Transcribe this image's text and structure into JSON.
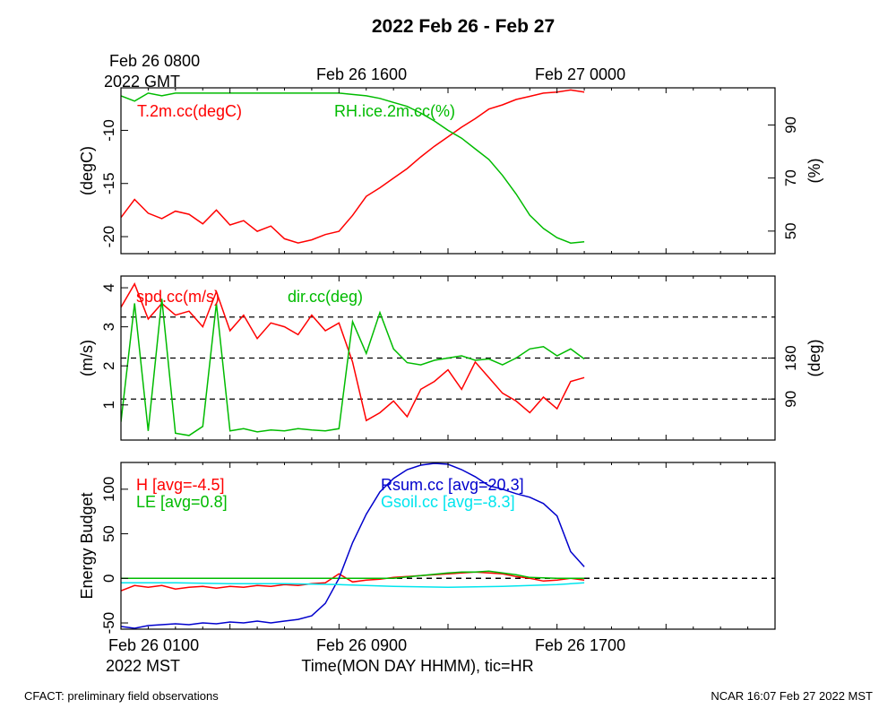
{
  "title": "2022 Feb 26 - Feb 27",
  "top_time_labels": {
    "t0_line1": "Feb 26 0800",
    "t0_line2": "2022 GMT",
    "t1": "Feb 26 1600",
    "t2": "Feb 27 0000"
  },
  "bottom_time_labels": {
    "t0_line1": "Feb 26 0100",
    "t0_line2": "2022 MST",
    "t1": "Feb 26 0900",
    "t2": "Feb 26 1700"
  },
  "xlabel": "Time(MON DAY HHMM), tic=HR",
  "footer_left": "CFACT: preliminary field observations",
  "footer_right": "NCAR 16:07 Feb 27 2022 MST",
  "chart_data": [
    {
      "type": "line",
      "panel": "temperature-humidity",
      "x_unit": "hours since Feb 26 0100 MST",
      "xlim": [
        0,
        24
      ],
      "left_axis": {
        "label": "(degC)",
        "ylim": [
          -21.6,
          -6.0
        ],
        "ticks": [
          -20,
          -15,
          -10
        ]
      },
      "right_axis": {
        "label": "(%)",
        "ylim": [
          41.5,
          104
        ],
        "ticks": [
          50,
          70,
          90
        ]
      },
      "series": [
        {
          "name": "T.2m.cc(degC)",
          "axis": "left",
          "color": "#ff0000",
          "x": [
            0,
            0.5,
            1,
            1.5,
            2,
            2.5,
            3,
            3.5,
            4,
            4.5,
            5,
            5.5,
            6,
            6.5,
            7,
            7.5,
            8,
            8.5,
            9,
            9.5,
            10,
            10.5,
            11,
            11.5,
            12,
            12.5,
            13,
            13.5,
            14,
            14.5,
            15,
            15.5,
            16,
            16.5,
            17
          ],
          "values": [
            -18.2,
            -16.5,
            -17.8,
            -18.3,
            -17.6,
            -17.9,
            -18.8,
            -17.5,
            -18.9,
            -18.5,
            -19.5,
            -19.0,
            -20.2,
            -20.6,
            -20.3,
            -19.8,
            -19.5,
            -18.0,
            -16.2,
            -15.4,
            -14.5,
            -13.6,
            -12.5,
            -11.5,
            -10.6,
            -9.7,
            -8.9,
            -8.0,
            -7.6,
            -7.1,
            -6.8,
            -6.5,
            -6.4,
            -6.2,
            -6.4
          ]
        },
        {
          "name": "RH.ice.2m.cc(%)",
          "axis": "right",
          "color": "#00bb00",
          "x": [
            0,
            0.5,
            1,
            1.5,
            2,
            2.5,
            3,
            3.5,
            4,
            4.5,
            5,
            5.5,
            6,
            6.5,
            7,
            7.5,
            8,
            8.5,
            9,
            9.5,
            10,
            10.5,
            11,
            11.5,
            12,
            12.5,
            13,
            13.5,
            14,
            14.5,
            15,
            15.5,
            16,
            16.5,
            17
          ],
          "values": [
            101,
            99,
            102,
            101,
            102,
            102,
            102,
            102,
            102,
            102,
            102,
            102,
            102,
            102,
            102,
            102,
            102,
            101.5,
            101,
            100,
            98.5,
            97,
            94.5,
            91.5,
            88,
            85,
            81,
            77,
            71,
            64,
            56,
            51,
            47.5,
            45.5,
            46
          ]
        }
      ]
    },
    {
      "type": "line",
      "panel": "wind",
      "x_unit": "hours since Feb 26 0100 MST",
      "xlim": [
        0,
        24
      ],
      "left_axis": {
        "label": "(m/s)",
        "ylim": [
          0.1,
          4.3
        ],
        "ticks": [
          1,
          2,
          3,
          4
        ]
      },
      "right_axis": {
        "label": "(deg)",
        "ylim": [
          0,
          360
        ],
        "ticks": [
          90,
          180
        ]
      },
      "reference_lines_right": [
        90,
        180,
        270
      ],
      "series": [
        {
          "name": "spd.cc(m/s)",
          "axis": "left",
          "color": "#ff0000",
          "x": [
            0,
            0.5,
            1,
            1.5,
            2,
            2.5,
            3,
            3.5,
            4,
            4.5,
            5,
            5.5,
            6,
            6.5,
            7,
            7.5,
            8,
            8.5,
            9,
            9.5,
            10,
            10.5,
            11,
            11.5,
            12,
            12.5,
            13,
            13.5,
            14,
            14.5,
            15,
            15.5,
            16,
            16.5,
            17
          ],
          "values": [
            3.5,
            4.1,
            3.2,
            3.6,
            3.3,
            3.4,
            3.0,
            3.9,
            2.9,
            3.3,
            2.7,
            3.1,
            3.0,
            2.8,
            3.3,
            2.9,
            3.1,
            2.1,
            0.6,
            0.8,
            1.1,
            0.7,
            1.4,
            1.6,
            1.9,
            1.4,
            2.1,
            1.7,
            1.3,
            1.1,
            0.8,
            1.2,
            0.9,
            1.6,
            1.7
          ]
        },
        {
          "name": "dir.cc(deg)",
          "axis": "right",
          "color": "#00bb00",
          "x": [
            0,
            0.5,
            1,
            1.5,
            2,
            2.5,
            3,
            3.5,
            4,
            4.5,
            5,
            5.5,
            6,
            6.5,
            7,
            7.5,
            8,
            8.5,
            9,
            9.5,
            10,
            10.5,
            11,
            11.5,
            12,
            12.5,
            13,
            13.5,
            14,
            14.5,
            15,
            15.5,
            16,
            16.5,
            17
          ],
          "values": [
            40,
            300,
            20,
            310,
            15,
            10,
            30,
            300,
            20,
            25,
            18,
            22,
            20,
            25,
            22,
            20,
            25,
            260,
            190,
            280,
            200,
            170,
            165,
            175,
            180,
            185,
            175,
            178,
            165,
            180,
            200,
            205,
            185,
            200,
            178
          ]
        }
      ]
    },
    {
      "type": "line",
      "panel": "energy-budget",
      "x_unit": "hours since Feb 26 0100 MST",
      "xlim": [
        0,
        24
      ],
      "left_axis": {
        "label": "Energy Budget",
        "ylim": [
          -57,
          130
        ],
        "ticks": [
          -50,
          0,
          50,
          100
        ]
      },
      "reference_lines_left": [
        0
      ],
      "series": [
        {
          "name": "H [avg=-4.5]",
          "color": "#ff0000",
          "x": [
            0,
            0.5,
            1,
            1.5,
            2,
            2.5,
            3,
            3.5,
            4,
            4.5,
            5,
            5.5,
            6,
            6.5,
            7,
            7.5,
            8,
            8.5,
            9,
            9.5,
            10,
            10.5,
            11,
            11.5,
            12,
            12.5,
            13,
            13.5,
            14,
            14.5,
            15,
            15.5,
            16,
            16.5,
            17
          ],
          "values": [
            -14,
            -8,
            -10,
            -8,
            -12,
            -10,
            -9,
            -11,
            -9,
            -10,
            -8,
            -9,
            -7,
            -8,
            -6,
            -5,
            5,
            -4,
            -2,
            -1,
            1,
            2,
            3,
            4,
            5,
            6,
            7,
            6,
            5,
            2,
            0,
            -3,
            -2,
            0,
            -2
          ]
        },
        {
          "name": "LE [avg=0.8]",
          "color": "#00bb00",
          "x": [
            0,
            1,
            2,
            3,
            4,
            5,
            6,
            7,
            8,
            9,
            10,
            11,
            12,
            12.5,
            13,
            13.5,
            14,
            14.5,
            15,
            16,
            17
          ],
          "values": [
            0,
            0,
            0,
            0,
            0,
            0,
            0,
            0,
            0,
            0,
            0,
            3,
            6,
            7,
            7,
            8,
            6,
            4,
            1,
            0,
            0
          ]
        },
        {
          "name": "Rsum.cc [avg=20.3]",
          "color": "#0000cc",
          "x": [
            0,
            0.5,
            1,
            1.5,
            2,
            2.5,
            3,
            3.5,
            4,
            4.5,
            5,
            5.5,
            6,
            6.5,
            7,
            7.5,
            8,
            8.5,
            9,
            9.5,
            10,
            10.5,
            11,
            11.5,
            12,
            12.5,
            13,
            13.5,
            14,
            14.5,
            15,
            15.5,
            16,
            16.5,
            17
          ],
          "values": [
            -54,
            -56,
            -53,
            -52,
            -51,
            -52,
            -50,
            -51,
            -49,
            -50,
            -48,
            -50,
            -48,
            -46,
            -42,
            -28,
            0,
            40,
            72,
            97,
            112,
            122,
            127,
            129,
            128,
            122,
            114,
            104,
            100,
            95,
            91,
            84,
            70,
            30,
            13
          ]
        },
        {
          "name": "Gsoil.cc [avg=-8.3]",
          "color": "#00e5ee",
          "x": [
            0,
            2,
            4,
            6,
            8,
            10,
            12,
            14,
            16,
            17
          ],
          "values": [
            -5,
            -5,
            -6,
            -6,
            -7,
            -9,
            -10,
            -9,
            -7,
            -5
          ]
        }
      ]
    }
  ]
}
